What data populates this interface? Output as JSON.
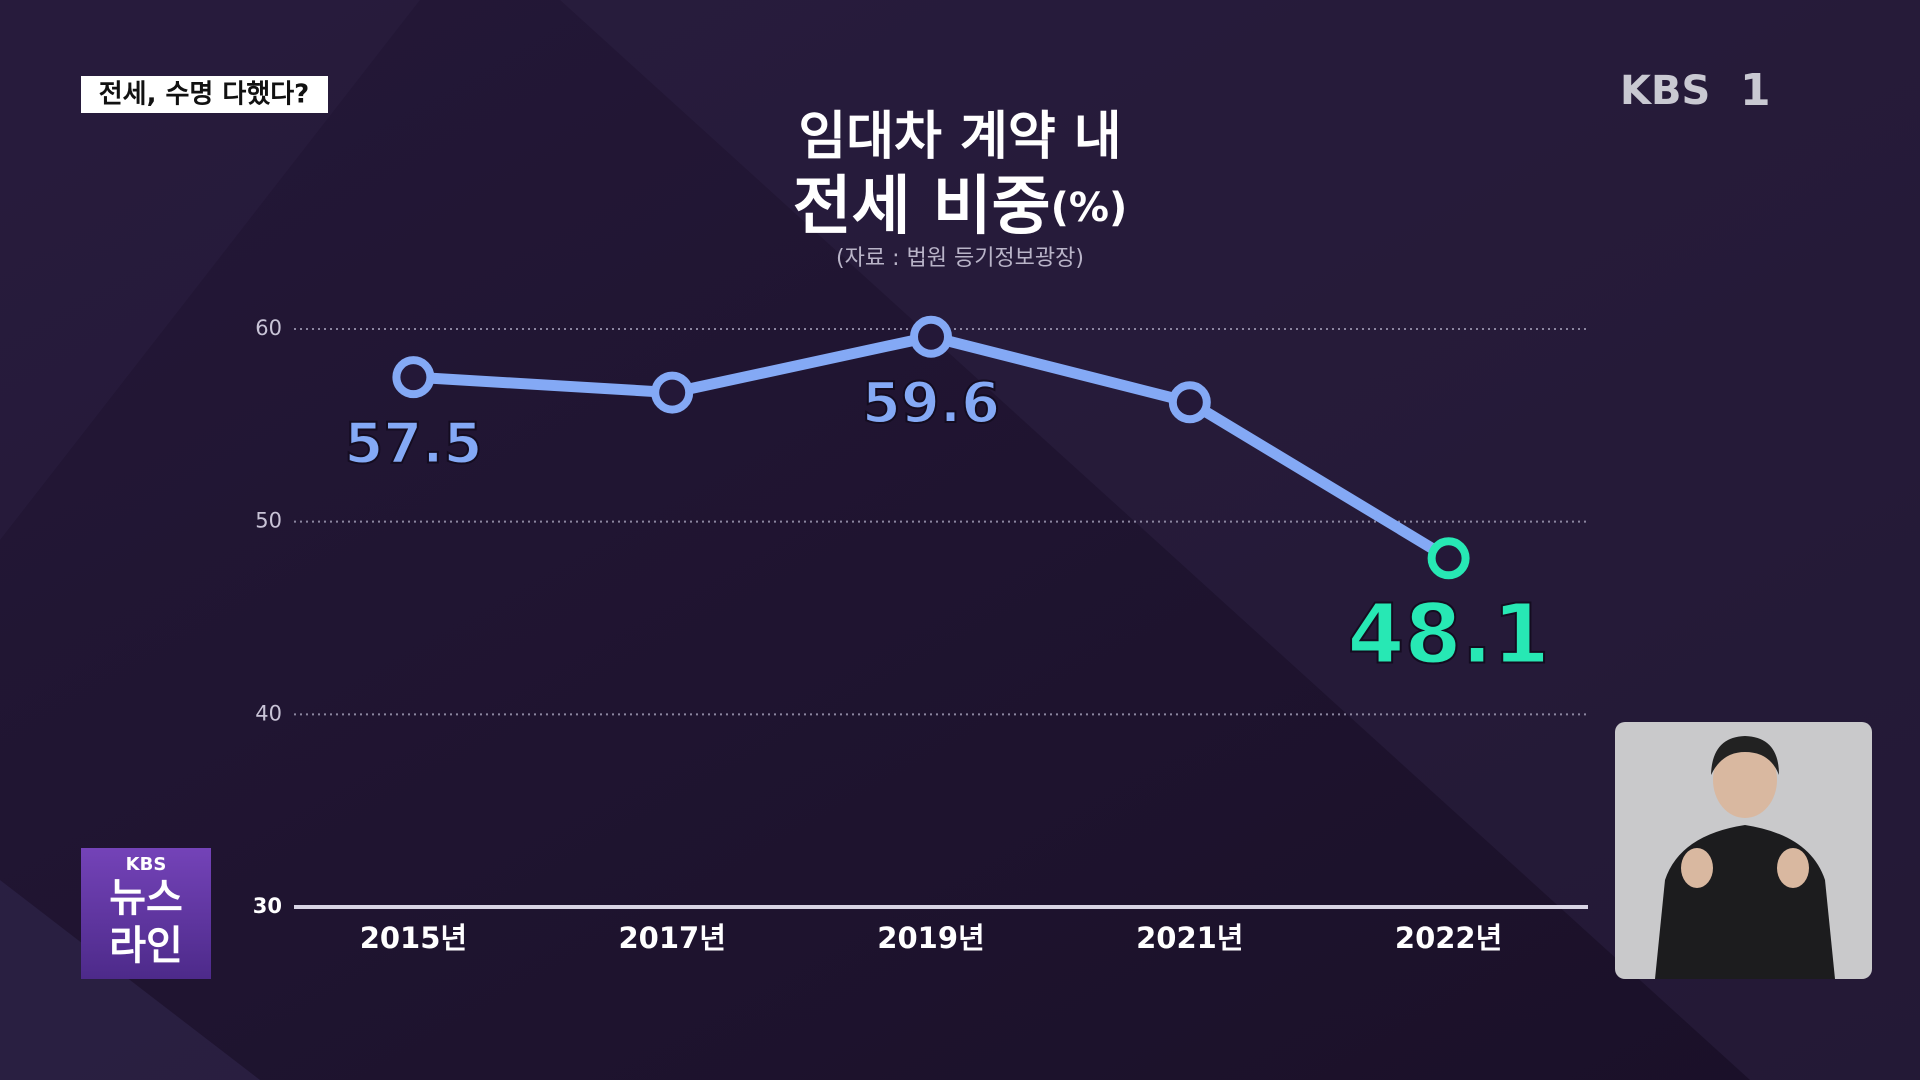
{
  "caption": "전세, 수명 다했다?",
  "logo": {
    "name": "KBS",
    "channel": "1"
  },
  "badge": {
    "brand": "KBS",
    "lines": [
      "뉴스",
      "라인"
    ]
  },
  "chart_data": {
    "type": "line",
    "title": [
      "임대차 계약 내",
      "전세 비중"
    ],
    "unit": "(%)",
    "subtitle": "(자료 : 법원 등기정보광장)",
    "categories": [
      "2015년",
      "2017년",
      "2019년",
      "2021년",
      "2022년"
    ],
    "values": [
      57.5,
      56.7,
      59.6,
      56.2,
      48.1
    ],
    "value_labels": [
      "57.5",
      null,
      "59.6",
      null,
      "48.1"
    ],
    "color": "#84a9f5",
    "colors": [
      "#84a9f5",
      "#84a9f5",
      "#84a9f5",
      "#84a9f5",
      "#27e8b4"
    ],
    "ylim": [
      30,
      60
    ],
    "yticks": [
      30,
      40,
      50,
      60
    ],
    "grid": true
  }
}
